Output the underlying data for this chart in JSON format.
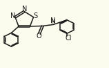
{
  "bg_color": "#fcfcee",
  "bond_color": "#1a1a1a",
  "atom_label_color": "#1a1a1a",
  "line_width": 1.1,
  "font_size": 7.0,
  "layout": {
    "xlim": [
      0.0,
      1.3
    ],
    "ylim": [
      0.05,
      1.0
    ]
  }
}
